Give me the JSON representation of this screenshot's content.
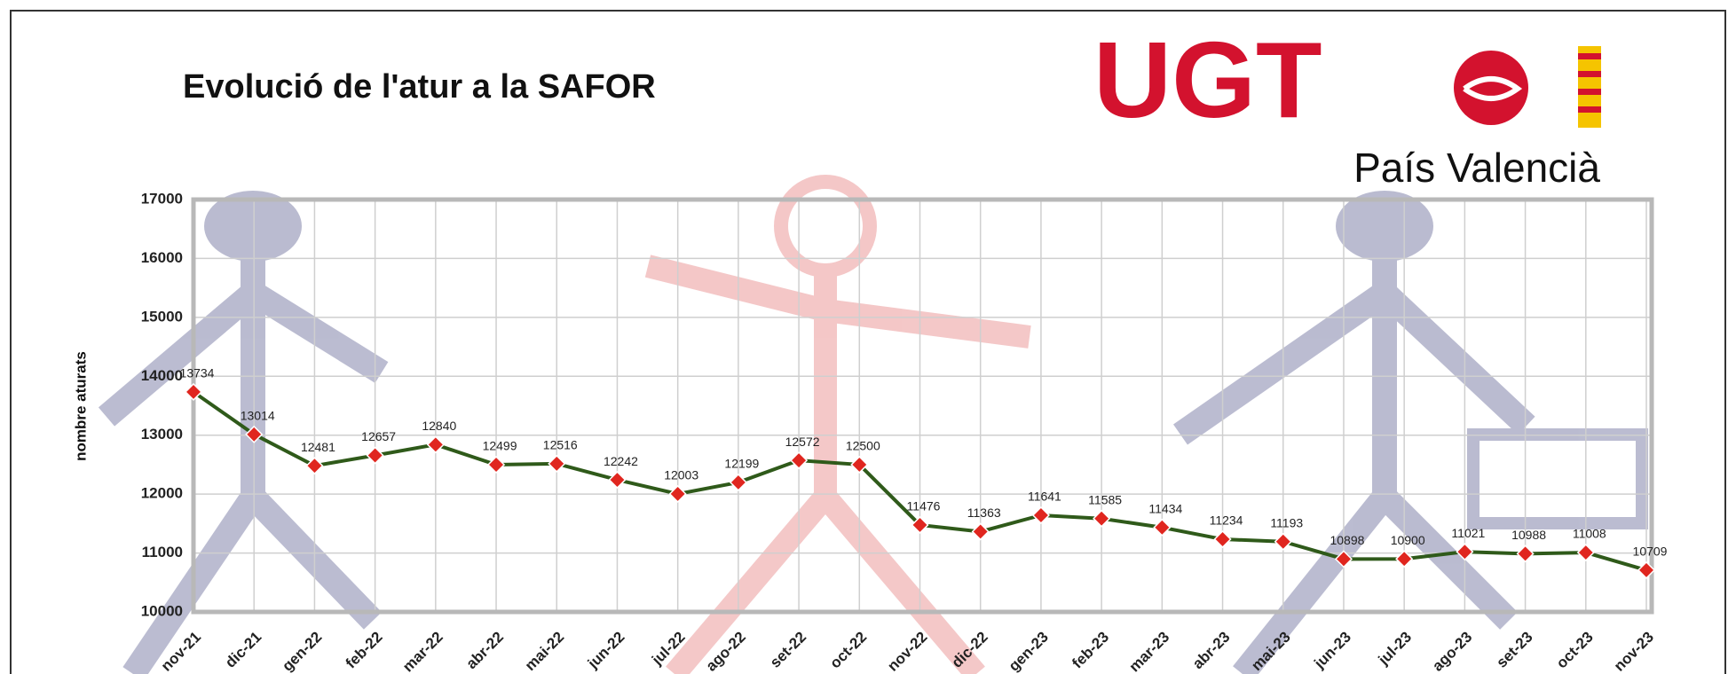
{
  "logo": {
    "name": "UGT",
    "region": "País Valencià"
  },
  "chart_data": {
    "type": "line",
    "title": "Evolució de l'atur a la SAFOR",
    "y_label": "nombre aturats",
    "categories": [
      "nov-21",
      "dic-21",
      "gen-22",
      "feb-22",
      "mar-22",
      "abr-22",
      "mai-22",
      "jun-22",
      "jul-22",
      "ago-22",
      "set-22",
      "oct-22",
      "nov-22",
      "dic-22",
      "gen-23",
      "feb-23",
      "mar-23",
      "abr-23",
      "mai-23",
      "jun-23",
      "jul-23",
      "ago-23",
      "set-23",
      "oct-23",
      "nov-23"
    ],
    "values": [
      13734,
      13014,
      12481,
      12657,
      12840,
      12499,
      12516,
      12242,
      12003,
      12199,
      12572,
      12500,
      11476,
      11363,
      11641,
      11585,
      11434,
      11234,
      11193,
      10898,
      10900,
      11021,
      10988,
      11008,
      10709
    ],
    "color": "#2f5a1a",
    "marker_color": "#e0261f",
    "ylim": [
      10000,
      17000
    ],
    "yticks": [
      10000,
      11000,
      12000,
      13000,
      14000,
      15000,
      16000,
      17000
    ],
    "grid": true
  }
}
